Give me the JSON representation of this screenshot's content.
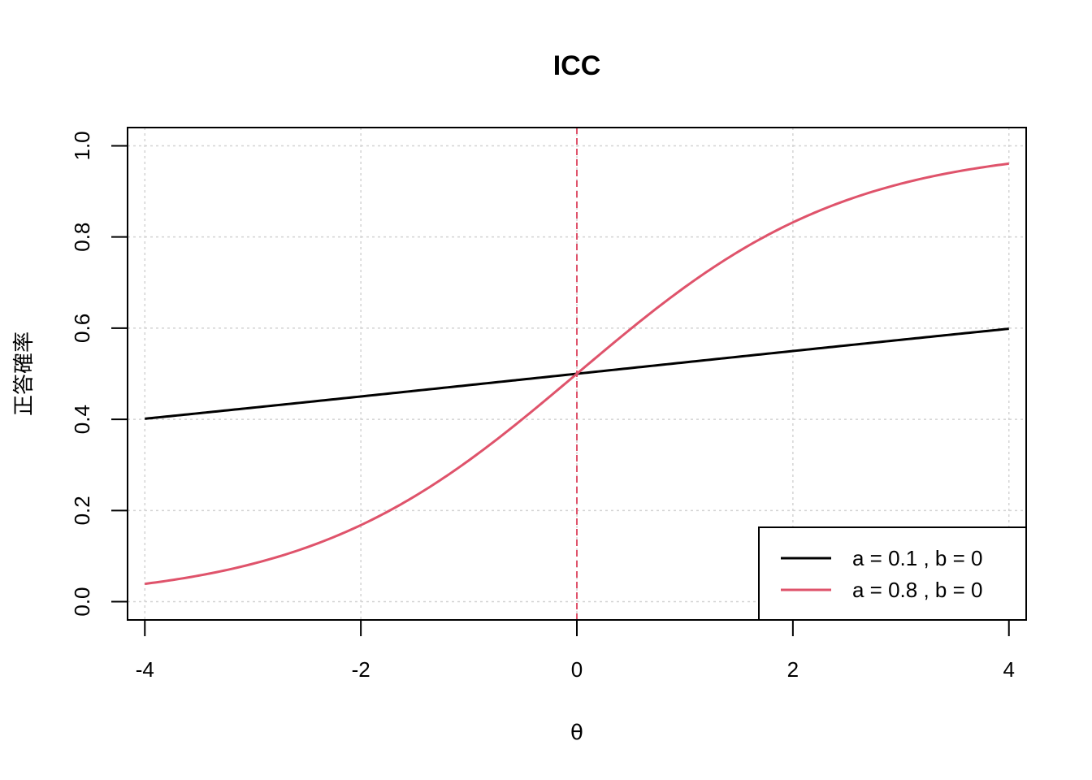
{
  "chart_data": {
    "type": "line",
    "title": "ICC",
    "xlabel": "θ",
    "ylabel": "正答確率",
    "xlim": [
      -4.16,
      4.16
    ],
    "ylim": [
      -0.04,
      1.04
    ],
    "x_ticks": [
      "-4",
      "-2",
      "0",
      "2",
      "4"
    ],
    "x_tick_values": [
      -4,
      -2,
      0,
      2,
      4
    ],
    "y_ticks": [
      "0.0",
      "0.2",
      "0.4",
      "0.6",
      "0.8",
      "1.0"
    ],
    "y_tick_values": [
      0,
      0.2,
      0.4,
      0.6,
      0.8,
      1.0
    ],
    "grid": true,
    "reference_line": {
      "orientation": "vertical",
      "x": 0,
      "style": "dashed",
      "color": "#DF536B"
    },
    "x": [
      -4,
      -3.5,
      -3,
      -2.5,
      -2,
      -1.5,
      -1,
      -0.5,
      0,
      0.5,
      1,
      1.5,
      2,
      2.5,
      3,
      3.5,
      4
    ],
    "series": [
      {
        "name": "a = 0.1 , b = 0",
        "color": "#000000",
        "a": 0.1,
        "b": 0,
        "values": [
          0.335,
          0.355,
          0.375,
          0.396,
          0.417,
          0.438,
          0.458,
          0.479,
          0.5,
          0.521,
          0.542,
          0.562,
          0.583,
          0.604,
          0.625,
          0.645,
          0.665
        ]
      },
      {
        "name": "a = 0.8 , b = 0",
        "color": "#DF536B",
        "a": 0.8,
        "b": 0,
        "values": [
          0.004,
          0.008,
          0.017,
          0.033,
          0.061,
          0.114,
          0.203,
          0.336,
          0.5,
          0.664,
          0.797,
          0.886,
          0.939,
          0.967,
          0.983,
          0.992,
          0.996
        ]
      }
    ],
    "legend_position": "bottom-right"
  }
}
